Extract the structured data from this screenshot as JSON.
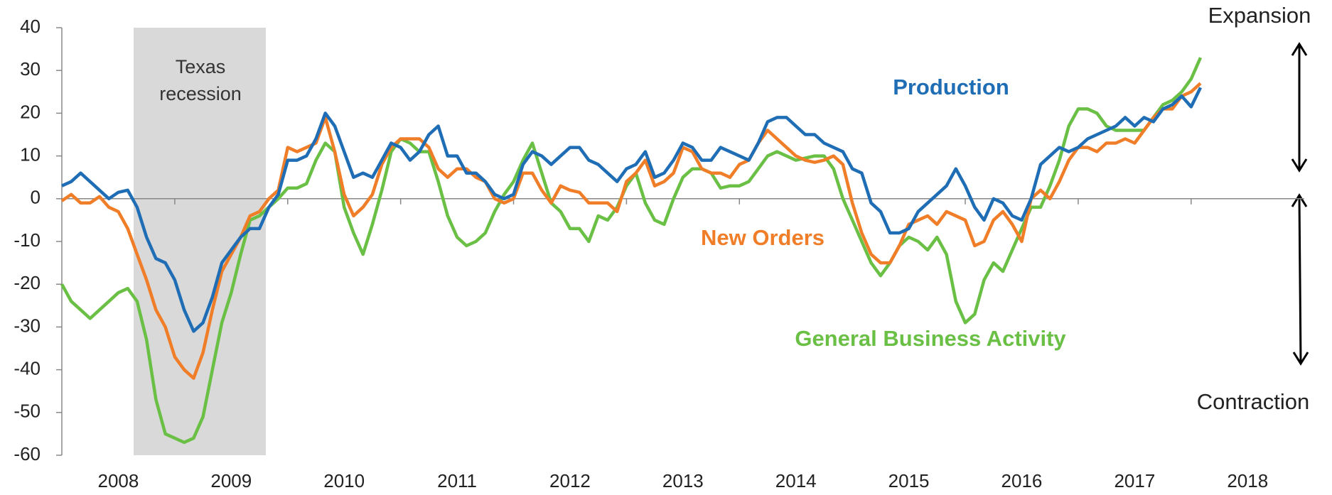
{
  "chart_data": {
    "type": "line",
    "annotations": {
      "expansion": "Expansion",
      "contraction": "Contraction",
      "recession": [
        "Texas",
        "recession"
      ]
    },
    "categories": [
      "2008",
      null,
      null,
      null,
      null,
      null,
      null,
      null,
      null,
      null,
      null,
      null,
      "2009",
      null,
      null,
      null,
      null,
      null,
      null,
      null,
      null,
      null,
      null,
      null,
      "2010",
      null,
      null,
      null,
      null,
      null,
      null,
      null,
      null,
      null,
      null,
      null,
      "2011",
      null,
      null,
      null,
      null,
      null,
      null,
      null,
      null,
      null,
      null,
      null,
      "2012",
      null,
      null,
      null,
      null,
      null,
      null,
      null,
      null,
      null,
      null,
      null,
      "2013",
      null,
      null,
      null,
      null,
      null,
      null,
      null,
      null,
      null,
      null,
      null,
      "2014",
      null,
      null,
      null,
      null,
      null,
      null,
      null,
      null,
      null,
      null,
      null,
      "2015",
      null,
      null,
      null,
      null,
      null,
      null,
      null,
      null,
      null,
      null,
      null,
      "2016",
      null,
      null,
      null,
      null,
      null,
      null,
      null,
      null,
      null,
      null,
      null,
      "2017",
      null,
      null,
      null,
      null,
      null,
      null,
      null,
      null,
      null,
      null,
      null,
      "2018",
      null
    ],
    "series": [
      {
        "name": "Production",
        "color": "#1f6db5",
        "values": [
          3,
          4,
          6,
          4,
          2,
          0,
          1.5,
          2,
          -2,
          -9,
          -14,
          -15,
          -19,
          -26,
          -31,
          -29,
          -23,
          -15,
          -12,
          -9,
          -7,
          -7,
          -2,
          1,
          9,
          9,
          10,
          14,
          20,
          17,
          11,
          5,
          6,
          5,
          9,
          13,
          12,
          9,
          11,
          15,
          17,
          10,
          10,
          6,
          6,
          4,
          1,
          0,
          1,
          8,
          11,
          10,
          8,
          10,
          12,
          12,
          9,
          8,
          6,
          4,
          7,
          8,
          11,
          5,
          6,
          9,
          13,
          12,
          9,
          9,
          12,
          11,
          10,
          9,
          13,
          18,
          19,
          19,
          17,
          15,
          15,
          13,
          12,
          11,
          7,
          6,
          -1,
          -3,
          -8,
          -8,
          -7,
          -3,
          -1,
          1,
          3,
          7,
          3,
          -2,
          -5,
          0,
          -1,
          -4,
          -5,
          0,
          8,
          10,
          12,
          11,
          12,
          14,
          15,
          16,
          17,
          19,
          17,
          19,
          18,
          21,
          22,
          24,
          21.5,
          26
        ]
      },
      {
        "name": "New Orders",
        "color": "#f07d28",
        "values": [
          -0.5,
          1,
          -1,
          -1,
          0.5,
          -2,
          -3,
          -7,
          -13,
          -19,
          -26,
          -30,
          -37,
          -40,
          -42,
          -36,
          -26,
          -17,
          -13,
          -9,
          -4,
          -3,
          0,
          2,
          12,
          11,
          12,
          13,
          19,
          11,
          1,
          -4,
          -2,
          1,
          8,
          12,
          14,
          14,
          14,
          12,
          7,
          5,
          7,
          7,
          5,
          4,
          0,
          -1,
          0,
          6,
          6,
          2,
          -1,
          3,
          2,
          1.5,
          -1,
          -1,
          -1,
          -3,
          4,
          6,
          9,
          3,
          4,
          6,
          12,
          11,
          7,
          6,
          6,
          5,
          8,
          9,
          13,
          16,
          14,
          12,
          10,
          9,
          8.5,
          9,
          10,
          8,
          -1,
          -8,
          -13,
          -15,
          -15,
          -11,
          -6,
          -5,
          -4,
          -6,
          -3,
          -4,
          -5,
          -11,
          -10,
          -5,
          -3,
          -6,
          -10,
          0,
          2,
          0,
          4,
          9,
          12,
          12,
          11,
          13,
          13,
          14,
          13,
          16,
          19,
          21,
          21,
          24,
          25,
          27
        ]
      },
      {
        "name": "General Business Activity",
        "color": "#6abf45",
        "values": [
          -20,
          -24,
          -26,
          -28,
          -26,
          -24,
          -22,
          -21,
          -24,
          -33,
          -47,
          -55,
          -56,
          -57,
          -56,
          -51,
          -40,
          -29,
          -22,
          -13,
          -5,
          -4,
          -2,
          0,
          2.5,
          2.5,
          3.5,
          9,
          13,
          11,
          -2,
          -8,
          -13,
          -6,
          2,
          11,
          14,
          13,
          11,
          11,
          4,
          -4,
          -9,
          -11,
          -10,
          -8,
          -3,
          1,
          4,
          9,
          13,
          6,
          -1,
          -3,
          -7,
          -7,
          -10,
          -4,
          -5,
          -2,
          3,
          6,
          -1,
          -5,
          -6,
          0,
          5,
          7,
          7,
          6,
          2.5,
          3,
          3,
          4,
          7,
          10,
          11,
          10,
          9,
          9.5,
          10,
          10,
          7,
          0,
          -5,
          -10,
          -15,
          -18,
          -15,
          -11,
          -9,
          -10,
          -12,
          -9,
          -13,
          -24,
          -29,
          -27,
          -19,
          -15,
          -17,
          -12,
          -7,
          -2,
          -2,
          3,
          9,
          17,
          21,
          21,
          20,
          17,
          16,
          16,
          16,
          16,
          19,
          22,
          23,
          25,
          28,
          33
        ]
      }
    ],
    "ylim": [
      -60,
      40
    ],
    "yticks": [
      -60,
      -50,
      -40,
      -30,
      -20,
      -10,
      0,
      10,
      20,
      30,
      40
    ]
  }
}
